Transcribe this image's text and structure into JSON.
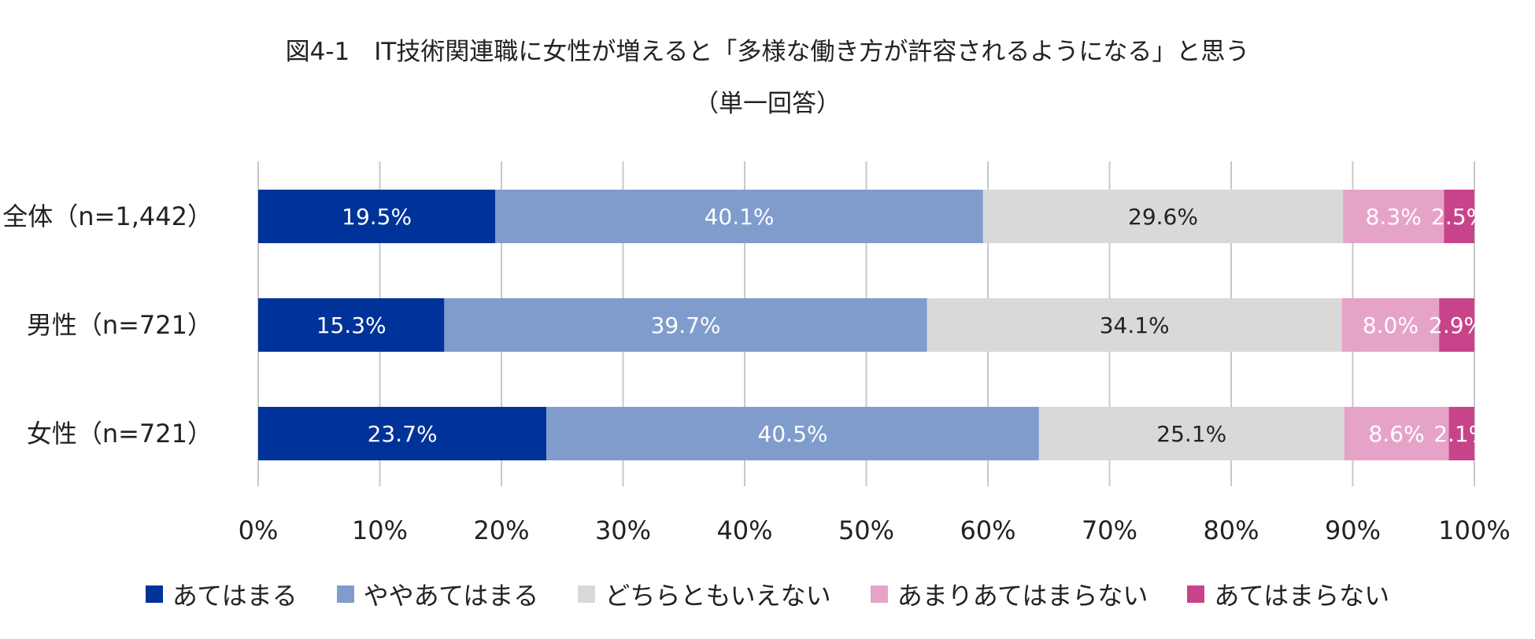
{
  "chart_data": {
    "type": "bar",
    "orientation": "horizontal",
    "stacked": true,
    "title_line1": "図4-1　IT技術関連職に女性が増えると「多様な働き方が許容されるようになる」と思う",
    "title_line2": "（単一回答）",
    "categories": [
      "全体（n=1,442）",
      "男性（n=721）",
      "女性（n=721）"
    ],
    "xlim": [
      0,
      100
    ],
    "x_ticks": [
      "0%",
      "10%",
      "20%",
      "30%",
      "40%",
      "50%",
      "60%",
      "70%",
      "80%",
      "90%",
      "100%"
    ],
    "grid": true,
    "legend_position": "bottom",
    "series": [
      {
        "name": "あてはまる",
        "values": [
          19.5,
          15.3,
          23.7
        ],
        "labels": [
          "19.5%",
          "15.3%",
          "23.7%"
        ],
        "color": "#003399",
        "label_color": "#ffffff"
      },
      {
        "name": "ややあてはまる",
        "values": [
          40.1,
          39.7,
          40.5
        ],
        "labels": [
          "40.1%",
          "39.7%",
          "40.5%"
        ],
        "color": "#7f9ccc",
        "label_color": "#ffffff"
      },
      {
        "name": "どちらともいえない",
        "values": [
          29.6,
          34.1,
          25.1
        ],
        "labels": [
          "29.6%",
          "34.1%",
          "25.1%"
        ],
        "color": "#d9d9d9",
        "label_color": "#222222"
      },
      {
        "name": "あまりあてはまらない",
        "values": [
          8.3,
          8.0,
          8.6
        ],
        "labels": [
          "8.3%",
          "8.0%",
          "8.6%"
        ],
        "color": "#e6a3c8",
        "label_color": "#ffffff"
      },
      {
        "name": "あてはまらない",
        "values": [
          2.5,
          2.9,
          2.1
        ],
        "labels": [
          "2.5%",
          "2.9%",
          "2.1%"
        ],
        "color": "#c8448a",
        "label_color": "#ffffff"
      }
    ]
  }
}
